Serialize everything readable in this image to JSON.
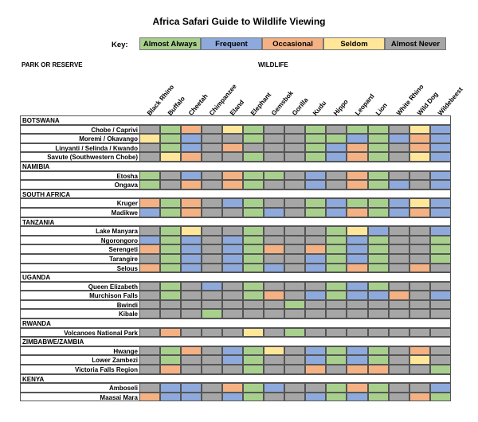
{
  "title": "Africa Safari Guide to Wildlife Viewing",
  "key": {
    "label": "Key:",
    "items": [
      {
        "label": "Almost Always",
        "color": "#a8d08d"
      },
      {
        "label": "Frequent",
        "color": "#8ea9db"
      },
      {
        "label": "Occasional",
        "color": "#f4b183"
      },
      {
        "label": "Seldom",
        "color": "#ffe699"
      },
      {
        "label": "Almost Never",
        "color": "#a6a6a6"
      }
    ]
  },
  "headers": {
    "park": "PARK OR RESERVE",
    "wildlife": "WILDLIFE"
  },
  "animals": [
    "Black Rhino",
    "Buffalo",
    "Cheetah",
    "Chimpanzee",
    "Eland",
    "Elephant",
    "Gemsbok",
    "Gorilla",
    "Kudu",
    "Hippo",
    "Leopard",
    "Lion",
    "White Rhino",
    "Wild Dog",
    "Wildebeest"
  ],
  "regions": [
    {
      "name": "BOTSWANA",
      "parks": [
        {
          "name": "Chobe / Caprivi",
          "ratings": "NAONSANNANAANSF"
        },
        {
          "name": "Moremi / Okavango",
          "ratings": "SAFNNANNAAFAFOF"
        },
        {
          "name": "Linyanti / Selinda / Kwando",
          "ratings": "NAFNONNNAFOANOF"
        },
        {
          "name": "Savute (Southwestern Chobe)",
          "ratings": "NSONNANNAFOANSF"
        }
      ]
    },
    {
      "name": "NAMIBIA",
      "parks": [
        {
          "name": "Etosha",
          "ratings": "ANFNOAANFNOANNF"
        },
        {
          "name": "Ongava",
          "ratings": "ANONOANNFNOAFNF"
        }
      ]
    },
    {
      "name": "SOUTH AFRICA",
      "parks": [
        {
          "name": "Kruger",
          "ratings": "OAONFANNAFAAFSF"
        },
        {
          "name": "Madikwe",
          "ratings": "FAONNAFNAFOAFOF"
        }
      ]
    },
    {
      "name": "TANZANIA",
      "parks": [
        {
          "name": "Lake Manyara",
          "ratings": "NASNNANNNASFNNF"
        },
        {
          "name": "Ngorongoro",
          "ratings": "FAFNFANNNAFANNA"
        },
        {
          "name": "Serengeti",
          "ratings": "OAFNFAONOAFANNA"
        },
        {
          "name": "Tarangire",
          "ratings": "NAFNFANNFAFANNA"
        },
        {
          "name": "Selous",
          "ratings": "OAFNFAFNFAOANON"
        }
      ]
    },
    {
      "name": "UGANDA",
      "parks": [
        {
          "name": "Queen Elizabeth",
          "ratings": "NANFNANNNAFANNN"
        },
        {
          "name": "Murchison Falls",
          "ratings": "NANNNAONFAFFONF"
        },
        {
          "name": "Bwindi",
          "ratings": "NNNNNNNANNNNNNN"
        },
        {
          "name": "Kibale",
          "ratings": "NNNANNNNNNNNNNN"
        }
      ]
    },
    {
      "name": "RWANDA",
      "parks": [
        {
          "name": "Volcanoes National Park",
          "ratings": "NONNNSNANNNNNNN"
        }
      ]
    },
    {
      "name": "ZIMBABWE/ZAMBIA",
      "parks": [
        {
          "name": "Hwange",
          "ratings": "NAONFASNFAFANON"
        },
        {
          "name": "Lower Zambezi",
          "ratings": "NANNFANNFAFANSN"
        },
        {
          "name": "Victoria Falls Region",
          "ratings": "NONNNANNONOONNA"
        }
      ]
    },
    {
      "name": "KENYA",
      "parks": [
        {
          "name": "Amboseli",
          "ratings": "NFFNOAFNNAOANNF"
        },
        {
          "name": "Maasai Mara",
          "ratings": "OFFNFANNFAFANOA"
        }
      ]
    }
  ],
  "rating_colors": {
    "A": "#a8d08d",
    "F": "#8ea9db",
    "O": "#f4b183",
    "S": "#ffe699",
    "N": "#a6a6a6"
  }
}
